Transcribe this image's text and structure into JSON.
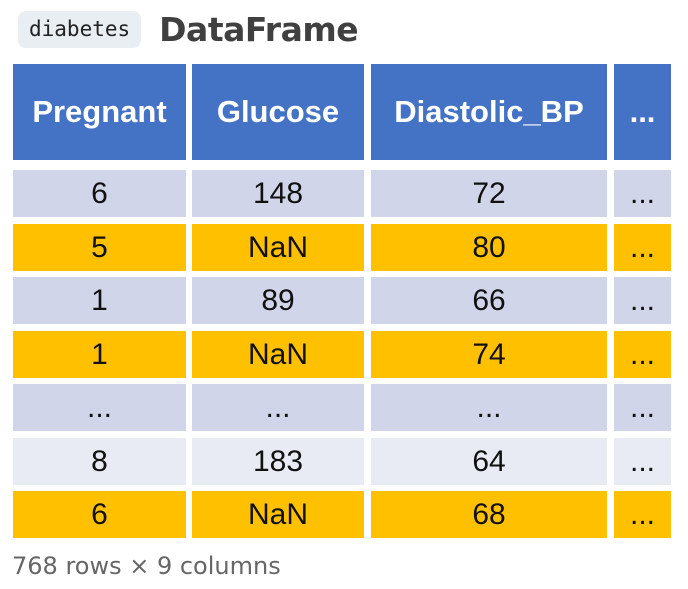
{
  "header": {
    "variable_name": "diabetes",
    "title": "DataFrame"
  },
  "table": {
    "columns": [
      "Pregnant",
      "Glucose",
      "Diastolic_BP",
      "..."
    ],
    "rows": [
      {
        "cells": [
          "6",
          "148",
          "72",
          "..."
        ],
        "fill": "lavender"
      },
      {
        "cells": [
          "5",
          "NaN",
          "80",
          "..."
        ],
        "fill": "gold"
      },
      {
        "cells": [
          "1",
          "89",
          "66",
          "..."
        ],
        "fill": "lavender"
      },
      {
        "cells": [
          "1",
          "NaN",
          "74",
          "..."
        ],
        "fill": "gold"
      },
      {
        "cells": [
          "...",
          "...",
          "...",
          "..."
        ],
        "fill": "lavender"
      },
      {
        "cells": [
          "8",
          "183",
          "64",
          "..."
        ],
        "fill": "lavender-light"
      },
      {
        "cells": [
          "6",
          "NaN",
          "68",
          "..."
        ],
        "fill": "gold"
      }
    ]
  },
  "footer": {
    "summary": "768 rows × 9 columns"
  },
  "colors": {
    "header": "#4472c4",
    "lavender": "#d0d5e9",
    "lavender-light": "#e8eaf4",
    "gold": "#ffc000"
  }
}
